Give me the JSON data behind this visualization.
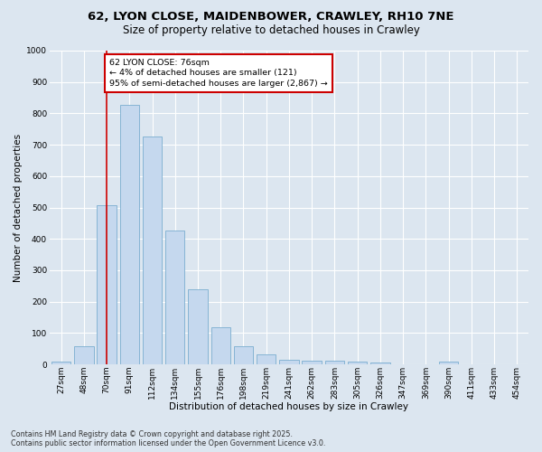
{
  "title_line1": "62, LYON CLOSE, MAIDENBOWER, CRAWLEY, RH10 7NE",
  "title_line2": "Size of property relative to detached houses in Crawley",
  "xlabel": "Distribution of detached houses by size in Crawley",
  "ylabel": "Number of detached properties",
  "bar_color": "#c5d8ee",
  "bar_edge_color": "#7aadcf",
  "background_color": "#dce6f0",
  "grid_color": "#ffffff",
  "categories": [
    "27sqm",
    "48sqm",
    "70sqm",
    "91sqm",
    "112sqm",
    "134sqm",
    "155sqm",
    "176sqm",
    "198sqm",
    "219sqm",
    "241sqm",
    "262sqm",
    "283sqm",
    "305sqm",
    "326sqm",
    "347sqm",
    "369sqm",
    "390sqm",
    "411sqm",
    "433sqm",
    "454sqm"
  ],
  "values": [
    8,
    58,
    507,
    827,
    726,
    428,
    238,
    118,
    57,
    32,
    15,
    12,
    12,
    8,
    5,
    0,
    0,
    8,
    0,
    0,
    0
  ],
  "vline_x": 2.0,
  "vline_color": "#cc0000",
  "annotation_text": "62 LYON CLOSE: 76sqm\n← 4% of detached houses are smaller (121)\n95% of semi-detached houses are larger (2,867) →",
  "annotation_box_color": "#ffffff",
  "annotation_box_edge_color": "#cc0000",
  "ylim": [
    0,
    1000
  ],
  "yticks": [
    0,
    100,
    200,
    300,
    400,
    500,
    600,
    700,
    800,
    900,
    1000
  ],
  "footer_line1": "Contains HM Land Registry data © Crown copyright and database right 2025.",
  "footer_line2": "Contains public sector information licensed under the Open Government Licence v3.0.",
  "title_fontsize": 9.5,
  "subtitle_fontsize": 8.5,
  "axis_label_fontsize": 7.5,
  "tick_fontsize": 6.5,
  "annotation_fontsize": 6.8,
  "footer_fontsize": 5.8,
  "bar_width": 0.85
}
